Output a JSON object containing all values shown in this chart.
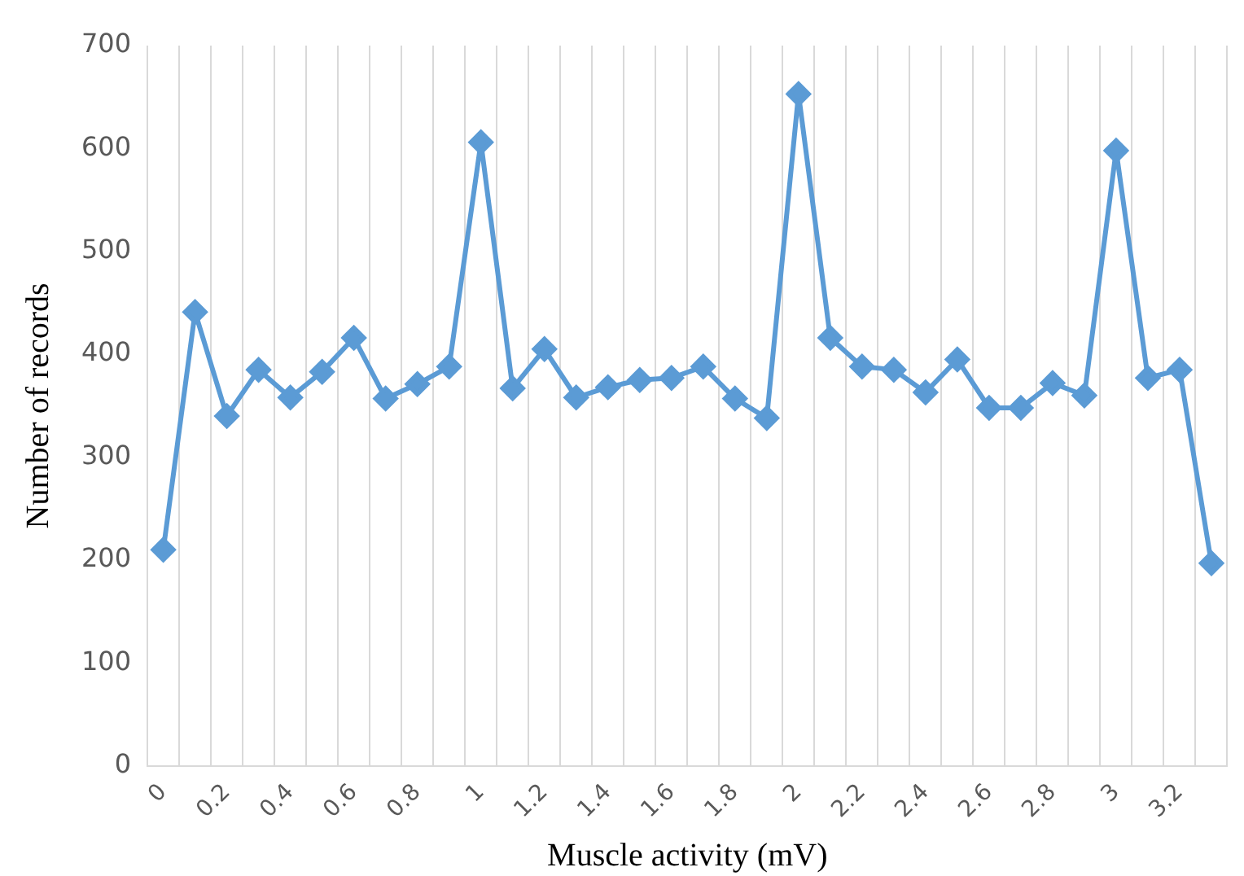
{
  "chart_data": {
    "type": "line",
    "xlabel": "Muscle activity (mV)",
    "ylabel": "Number of records",
    "categories": [
      "0",
      null,
      "0.2",
      null,
      "0.4",
      null,
      "0.6",
      null,
      "0.8",
      null,
      "1",
      null,
      "1.2",
      null,
      "1.4",
      null,
      "1.6",
      null,
      "1.8",
      null,
      "2",
      null,
      "2.2",
      null,
      "2.4",
      null,
      "2.6",
      null,
      "2.8",
      null,
      "3",
      null,
      "3.2",
      null
    ],
    "series": [
      {
        "color": "#5b9bd5",
        "values": [
          210,
          441,
          340,
          385,
          358,
          383,
          416,
          357,
          371,
          388,
          606,
          367,
          405,
          358,
          368,
          375,
          377,
          388,
          357,
          338,
          653,
          416,
          388,
          385,
          363,
          395,
          348,
          348,
          372,
          360,
          598,
          377,
          385,
          197
        ]
      }
    ],
    "ylim": [
      0,
      700
    ],
    "yticks": [
      0,
      100,
      200,
      300,
      400,
      500,
      600,
      700
    ],
    "grid": "x",
    "legend": false,
    "marker": "diamond",
    "line_style": "solid"
  }
}
